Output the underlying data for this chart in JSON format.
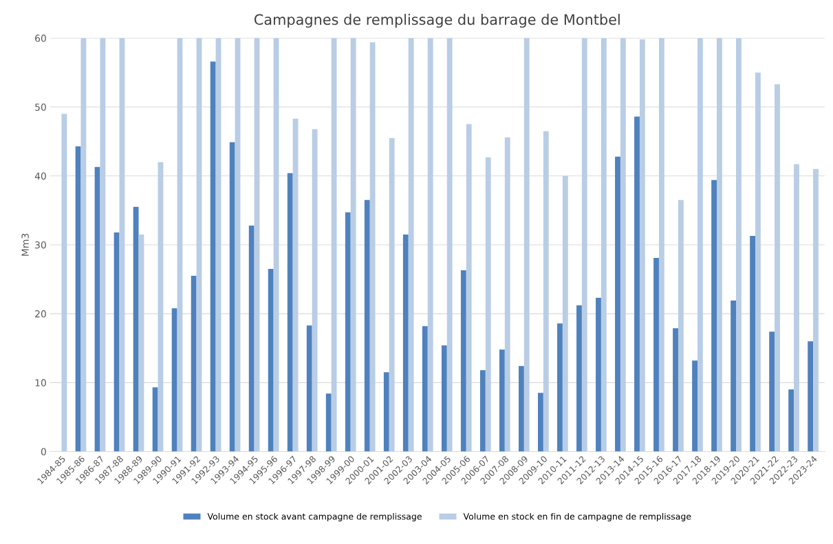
{
  "chart_data": {
    "type": "bar",
    "title": "Campagnes de remplissage du barrage de Montbel",
    "ylabel": "Mm3",
    "categories": [
      "1984-85",
      "1985-86",
      "1986-87",
      "1987-88",
      "1988-89",
      "1989-90",
      "1990-91",
      "1991-92",
      "1992-93",
      "1993-94",
      "1994-95",
      "1995-96",
      "1996-97",
      "1997-98",
      "1998-99",
      "1999-00",
      "2000-01",
      "2001-02",
      "2002-03",
      "2003-04",
      "2004-05",
      "2005-06",
      "2006-07",
      "2007-08",
      "2008-09",
      "2009-10",
      "2010-11",
      "2011-12",
      "2012-13",
      "2013-14",
      "2014-15",
      "2015-16",
      "2016-17",
      "2017-18",
      "2018-19",
      "2019-20",
      "2020-21",
      "2021-22",
      "2022-23",
      "2023-24"
    ],
    "series": [
      {
        "name": "Volume en stock avant campagne de remplissage",
        "color": "#4f81bd",
        "values": [
          null,
          44.3,
          41.3,
          31.8,
          35.5,
          9.3,
          20.8,
          25.5,
          56.6,
          44.9,
          32.8,
          26.5,
          40.4,
          18.3,
          8.4,
          34.7,
          36.5,
          11.5,
          31.5,
          18.2,
          15.4,
          26.3,
          11.8,
          14.8,
          12.4,
          8.5,
          18.6,
          21.2,
          22.3,
          42.8,
          48.6,
          28.1,
          17.9,
          13.2,
          39.4,
          21.9,
          31.3,
          17.4,
          9.0,
          16.0
        ]
      },
      {
        "name": "Volume en stock en fin de campagne de remplissage",
        "color": "#b9cde5",
        "values": [
          49.0,
          60,
          60,
          60,
          31.5,
          42.0,
          60,
          60,
          60,
          60,
          60,
          60,
          48.3,
          46.8,
          60,
          60,
          59.4,
          45.5,
          60,
          60,
          60,
          47.5,
          42.7,
          45.6,
          60,
          46.5,
          40.0,
          60,
          60,
          60,
          59.8,
          60,
          36.5,
          60,
          60,
          60,
          55.0,
          53.3,
          41.7,
          41.0
        ]
      }
    ],
    "ylim": [
      0,
      60
    ],
    "yticks": [
      0,
      10,
      20,
      30,
      40,
      50,
      60
    ],
    "grid": "y",
    "legend": "bottom"
  }
}
